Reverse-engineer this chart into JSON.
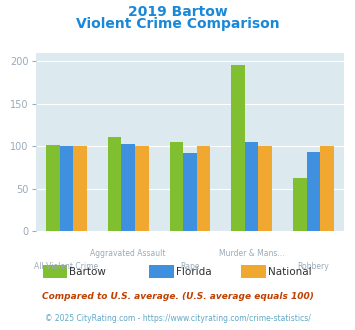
{
  "title_line1": "2019 Bartow",
  "title_line2": "Violent Crime Comparison",
  "categories": [
    "All Violent Crime",
    "Aggravated Assault",
    "Rape",
    "Murder & Mans...",
    "Robbery"
  ],
  "cat_labels_top": [
    "",
    "Aggravated Assault",
    "",
    "Murder & Mans...",
    ""
  ],
  "cat_labels_bot": [
    "All Violent Crime",
    "",
    "Rape",
    "",
    "Robbery"
  ],
  "bartow_values": [
    101,
    111,
    105,
    196,
    63
  ],
  "florida_values": [
    100,
    103,
    92,
    105,
    93
  ],
  "national_values": [
    100,
    100,
    100,
    100,
    100
  ],
  "bartow_color": "#80c030",
  "florida_color": "#4090e0",
  "national_color": "#f0a830",
  "bg_color": "#dce9ef",
  "ylim": [
    0,
    210
  ],
  "yticks": [
    0,
    50,
    100,
    150,
    200
  ],
  "legend_labels": [
    "Bartow",
    "Florida",
    "National"
  ],
  "footnote1": "Compared to U.S. average. (U.S. average equals 100)",
  "footnote2": "© 2025 CityRating.com - https://www.cityrating.com/crime-statistics/",
  "title_color": "#1a88d8",
  "footnote1_color": "#c04000",
  "footnote2_color": "#60a8c8",
  "xlabel_color": "#9aaab8",
  "tick_color": "#9aaab8",
  "legend_text_color": "#303030"
}
